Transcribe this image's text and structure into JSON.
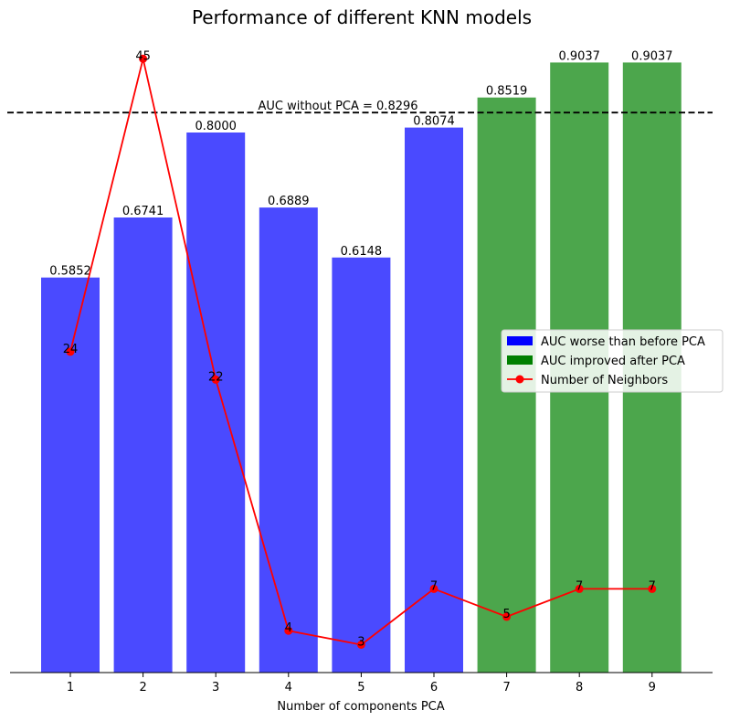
{
  "chart_data": {
    "type": "bar",
    "title": "Performance of different KNN models",
    "xlabel": "Number of components PCA",
    "ylabel": "",
    "categories": [
      "1",
      "2",
      "3",
      "4",
      "5",
      "6",
      "7",
      "8",
      "9"
    ],
    "ylim": [
      0,
      0.93
    ],
    "grid": false,
    "legend_position": "center-right",
    "series": [
      {
        "name": "AUC",
        "values": [
          0.5852,
          0.6741,
          0.8,
          0.6889,
          0.6148,
          0.8074,
          0.8519,
          0.9037,
          0.9037
        ],
        "labels": [
          "0.5852",
          "0.6741",
          "0.8000",
          "0.6889",
          "0.6148",
          "0.8074",
          "0.8519",
          "0.9037",
          "0.9037"
        ],
        "improved": [
          false,
          false,
          false,
          false,
          false,
          false,
          true,
          true,
          true
        ]
      },
      {
        "name": "Number of Neighbors",
        "type": "line",
        "values": [
          24,
          45,
          22,
          4,
          3,
          7,
          5,
          7,
          7
        ],
        "labels": [
          "24",
          "45",
          "22",
          "4",
          "3",
          "7",
          "5",
          "7",
          "7"
        ],
        "ylim": [
          1,
          46
        ]
      }
    ],
    "reference_line": {
      "value": 0.8296,
      "label": "AUC without PCA = 0.8296"
    },
    "legend": [
      {
        "label": "AUC worse than before PCA",
        "kind": "patch",
        "color": "#0000ff"
      },
      {
        "label": "AUC improved after PCA",
        "kind": "patch",
        "color": "#008000"
      },
      {
        "label": "Number of Neighbors",
        "kind": "line-marker",
        "color": "#ff0000"
      }
    ],
    "colors": {
      "worse": "#4a4aff",
      "improved": "#4ca64c",
      "line": "#ff0000",
      "reference": "#000000"
    }
  }
}
